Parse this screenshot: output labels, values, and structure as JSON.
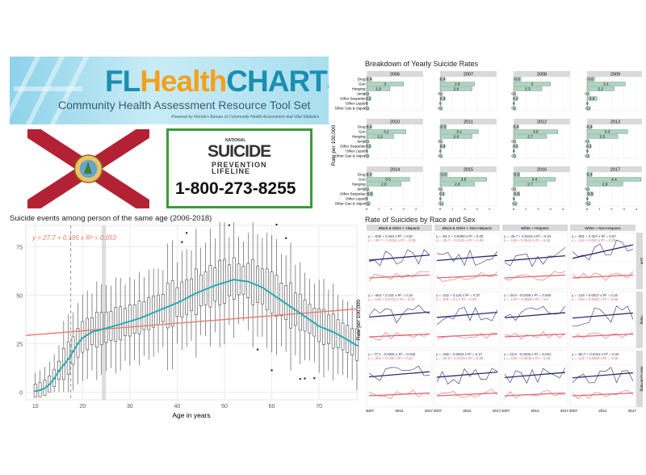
{
  "banner": {
    "logo_part1": "FL",
    "logo_part2": "Health",
    "logo_part3": "CHARTS",
    "subtitle": "Community Health Assessment Resource Tool Set",
    "note": "Powered by Florida's Bureau of Community Health Assessment and Vital Statistics"
  },
  "lifeline": {
    "national": "NATIONAL",
    "suicide": "SUICIDE",
    "prevention": "PREVENTION",
    "lifeline": "LIFELINE",
    "phone": "1-800-273-8255"
  },
  "colors": {
    "bar_fill": "#a8d8c0",
    "fit_line": "#e8796c",
    "smooth_line": "#17a9b5",
    "dark_series": "#2d2a6e",
    "red_series": "#e06670",
    "flag_red": "#b22234"
  },
  "chart_data": [
    {
      "type": "bar",
      "title": "Breakdown of Yearly Suicide Rates",
      "ylabel": "Rate per 100,000",
      "categories": [
        "Drug",
        "Gun",
        "Hanging",
        "Jump",
        "Other Sequelae",
        "Other Liquid",
        "Other Gas & Vapor"
      ],
      "xticks": [
        "0",
        "1",
        "2",
        "3",
        "4"
      ],
      "panels": [
        {
          "year": "2006",
          "values": [
            0.4,
            3,
            1.9,
            0.1,
            0.3,
            0,
            0.1
          ],
          "labels": [
            "0.4",
            "3",
            "1.9",
            "0.1",
            "0.3",
            "0",
            "0.1"
          ]
        },
        {
          "year": "2007",
          "values": [
            0.4,
            2.8,
            2.6,
            0.1,
            0.4,
            0,
            0.1
          ],
          "labels": [
            "0.4",
            "2.8",
            "2.6",
            "0.1",
            "0.4",
            "0",
            "0.1"
          ]
        },
        {
          "year": "2008",
          "values": [
            0.6,
            3,
            2.3,
            0.1,
            0.3,
            0,
            0.1
          ],
          "labels": [
            "0.6",
            "3",
            "2.3",
            "0.1",
            "0.3",
            "0",
            "0.1"
          ]
        },
        {
          "year": "2009",
          "values": [
            0.6,
            3.1,
            2.2,
            0.1,
            0.8,
            0,
            0.2
          ],
          "labels": [
            "0.6",
            "3.1",
            "2.2",
            "0.1",
            "0.8",
            "0",
            "0.2"
          ]
        },
        {
          "year": "2010",
          "values": [
            0.4,
            3.2,
            2.2,
            0.1,
            0.3,
            0,
            0.1
          ],
          "labels": [
            "0.4",
            "3.2",
            "2.2",
            "0.1",
            "0.3",
            "0",
            "0.1"
          ]
        },
        {
          "year": "2011",
          "values": [
            0.5,
            3.1,
            2.6,
            0.1,
            0.4,
            0,
            0.1
          ],
          "labels": [
            "0.5",
            "3.1",
            "2.6",
            "0.1",
            "0.4",
            "0",
            "0.1"
          ]
        },
        {
          "year": "2012",
          "values": [
            0.4,
            3.6,
            2.7,
            0.1,
            0.3,
            0,
            0.1
          ],
          "labels": [
            "0.4",
            "3.6",
            "2.7",
            "0.1",
            "0.3",
            "0",
            "0.1"
          ]
        },
        {
          "year": "2013",
          "values": [
            0.4,
            3.3,
            2.5,
            0.1,
            0.3,
            0,
            0.1
          ],
          "labels": [
            "0.4",
            "3.3",
            "2.5",
            "0.1",
            "0.3",
            "0",
            "0.1"
          ]
        },
        {
          "year": "2014",
          "values": [
            0.4,
            3.5,
            2.8,
            0.1,
            0.5,
            0,
            0.2
          ],
          "labels": [
            "0.4",
            "3.5",
            "2.8",
            "0.1",
            "0.5",
            "0",
            "0.2"
          ]
        },
        {
          "year": "2015",
          "values": [
            0.6,
            3.8,
            2.8,
            0.1,
            0.3,
            0,
            0.2
          ],
          "labels": [
            "0.6",
            "3.8",
            "2.8",
            "0.1",
            "0.3",
            "0",
            "0.2"
          ]
        },
        {
          "year": "2016",
          "values": [
            0.5,
            3.4,
            2.7,
            0.1,
            0.5,
            0,
            0.2
          ],
          "labels": [
            "0.5",
            "3.4",
            "2.7",
            "0.1",
            "0.5",
            "0",
            "0.2"
          ]
        },
        {
          "year": "2017",
          "values": [
            0.4,
            4.4,
            2.9,
            0.1,
            0.5,
            0,
            0.2
          ],
          "labels": [
            "0.4",
            "4.4",
            "2.9",
            "0.1",
            "0.5",
            "0",
            "0.2"
          ]
        }
      ]
    },
    {
      "type": "box",
      "title": "Suicide events among person of the same age (2006-2018)",
      "xlabel": "Age in years",
      "xlim": [
        8,
        78
      ],
      "ylim": [
        -4,
        86
      ],
      "xticks": [
        10,
        20,
        30,
        40,
        50,
        60,
        70
      ],
      "yticks": [
        0,
        25,
        50,
        75
      ],
      "equation": "y = 27.7 + 0.195 x   R² = 0.053",
      "fit": {
        "intercept": 27.7,
        "slope": 0.195
      },
      "dashed_x": 17.5,
      "highlight_x": 24.5,
      "medians": [
        {
          "age": 10,
          "v": 0.5
        },
        {
          "age": 11,
          "v": 1
        },
        {
          "age": 12,
          "v": 2
        },
        {
          "age": 13,
          "v": 4
        },
        {
          "age": 14,
          "v": 7
        },
        {
          "age": 15,
          "v": 11
        },
        {
          "age": 16,
          "v": 14
        },
        {
          "age": 17,
          "v": 17
        },
        {
          "age": 18,
          "v": 21
        },
        {
          "age": 19,
          "v": 25
        },
        {
          "age": 20,
          "v": 28
        },
        {
          "age": 22,
          "v": 31
        },
        {
          "age": 25,
          "v": 33
        },
        {
          "age": 28,
          "v": 35
        },
        {
          "age": 32,
          "v": 38
        },
        {
          "age": 36,
          "v": 42
        },
        {
          "age": 40,
          "v": 46
        },
        {
          "age": 44,
          "v": 51
        },
        {
          "age": 48,
          "v": 55
        },
        {
          "age": 52,
          "v": 58
        },
        {
          "age": 55,
          "v": 57
        },
        {
          "age": 58,
          "v": 54
        },
        {
          "age": 61,
          "v": 49
        },
        {
          "age": 64,
          "v": 44
        },
        {
          "age": 67,
          "v": 39
        },
        {
          "age": 70,
          "v": 34
        },
        {
          "age": 73,
          "v": 31
        },
        {
          "age": 76,
          "v": 27
        },
        {
          "age": 78,
          "v": 24
        }
      ]
    },
    {
      "type": "line",
      "title": "Rate of Suicides by Race and Sex",
      "ylabel": "Rate per 100,000",
      "xticks": [
        "2007",
        "2012",
        "2017"
      ],
      "columns": [
        "Black & Other + Hispanic",
        "Black & Other + Non-Hispanic",
        "White + Hispanic",
        "White + Non-Hispanic"
      ],
      "rows": [
        "Gun",
        "Hang",
        "Non-Gun/Hang"
      ],
      "equations": [
        [
          [
            "y = -528 + 0.263 x   R² = 0.26",
            "y = -30.7 + 0.0154 x   R² = 0.09"
          ],
          [
            "y = -94.1 + 0.0489 x   R² = 0.03",
            "y = -25.7 + 0.0131 x   R² = 0.06"
          ],
          [
            "y = -45.7 + 0.0244 x   R² = 0.01",
            "y = -129 + 0.0644 x   R² = 0.45"
          ],
          [
            "y = -651 + 0.327 x   R² = 0.67",
            "y = -113 + 0.057 x   R² = 0.29"
          ]
        ],
        [
          [
            "y = -463 + 0.231 x   R² = 0.15",
            "y = -146 + 0.0731 x   R² = 0.22"
          ],
          [
            "y = -232 + 0.116 x   R² = 0.37",
            "y = -201 + 0.1 x   R² = 0.49"
          ],
          [
            "y = 34.8 - 0.0158 x   R² = 0.004",
            "y = -178 + 0.0889 x   R² = 0.5"
          ],
          [
            "y = -119 + 0.0617 x   R² = 0.16",
            "y = -184 + 0.0922 x   R² = 0.56"
          ]
        ],
        [
          [
            "y = 77.2 - 0.0381 x   R² = 0.018",
            "y = -304 + 0.155 x   R² = 0.28"
          ],
          [
            "y = -185 + 0.0924 x   R² = 0.17",
            "y = -29.6 + 0.0149 x   R² = 0.09"
          ],
          [
            "y = 42.8 - 0.0206 x   R² = 0.031",
            "y = -109 + 0.0546 x   R² = 0.28"
          ],
          [
            "y = -60.7 + 0.0312 x   R² = 0.04",
            "y = -121 + 0.0606 x   R² = 0.55"
          ]
        ]
      ]
    }
  ]
}
